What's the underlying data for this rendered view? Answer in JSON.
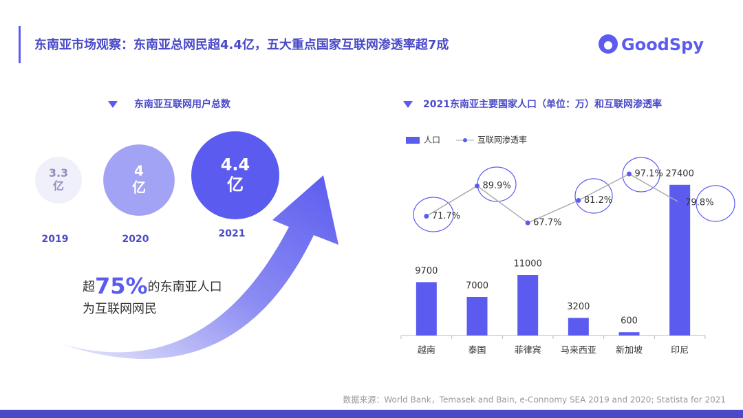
{
  "header": {
    "title": "东南亚市场观察：东南亚总网民超4.4亿，五大重点国家互联网渗透率超7成",
    "logo": "GoodSpy"
  },
  "annotation": {
    "prefix": "超",
    "highlight": "75%",
    "rest": "的东南亚人口",
    "line2": "为互联网网民"
  },
  "source": "数据来源：World Bank，Temasek and Bain, e-Connomy SEA 2019 and 2020; Statista for 2021",
  "chart_data": [
    {
      "type": "bubble",
      "title": "东南亚互联网用户总数",
      "categories": [
        "2019",
        "2020",
        "2021"
      ],
      "values": [
        3.3,
        4,
        4.4
      ],
      "unit": "亿",
      "colors": [
        "#f0f0fa",
        "#a3a3f5",
        "#5b5bf0"
      ]
    },
    {
      "type": "bar_line",
      "title": "2021东南亚主要国家人口（单位：万）和互联网渗透率",
      "categories": [
        "越南",
        "泰国",
        "菲律宾",
        "马来西亚",
        "新加坡",
        "印尼"
      ],
      "series": [
        {
          "name": "人口",
          "color": "#5b5bf0",
          "values": [
            9700,
            7000,
            11000,
            3200,
            600,
            27400
          ]
        },
        {
          "name": "互联网渗透率",
          "color": "#5b5bf0",
          "axis": "y2",
          "values": [
            71.7,
            89.9,
            67.7,
            81.2,
            97.1,
            79.8
          ],
          "value_labels": [
            "71.7%",
            "89.9%",
            "67.7%",
            "81.2%",
            "97.1%",
            "79.8%"
          ]
        }
      ],
      "ylim": [
        0,
        30000
      ],
      "y2lim": [
        50,
        100
      ],
      "legend": "top-left"
    }
  ]
}
